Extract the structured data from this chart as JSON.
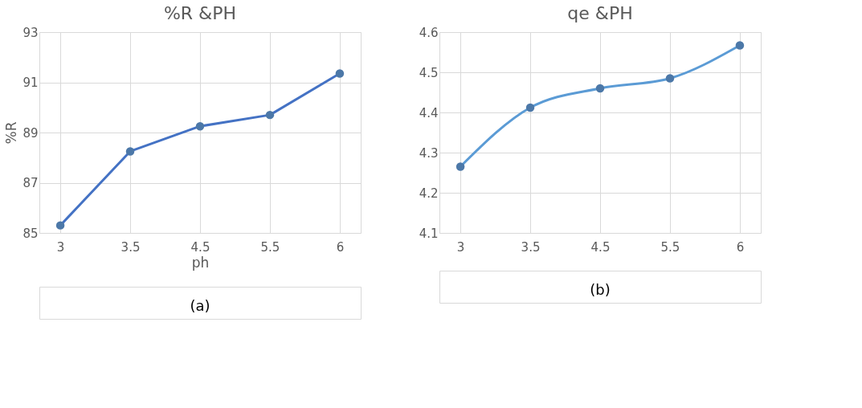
{
  "chart_data": [
    {
      "type": "line",
      "title": "%R &PH",
      "xlabel": "ph",
      "ylabel": "%R",
      "categories": [
        "3",
        "3.5",
        "4.5",
        "5.5",
        "6"
      ],
      "series": [
        {
          "color": "#4472c4",
          "values": [
            85.3,
            88.25,
            89.25,
            89.7,
            91.35
          ]
        }
      ],
      "ylim": [
        85,
        93
      ],
      "yticks": [
        85,
        87,
        89,
        91,
        93
      ],
      "grid": true,
      "marker": "circle",
      "annotations": [
        "(a)"
      ]
    },
    {
      "type": "line",
      "title": "qe &PH",
      "categories": [
        "3",
        "3.5",
        "4.5",
        "5.5",
        "6"
      ],
      "series": [
        {
          "color": "#5b9bd5",
          "values": [
            4.265,
            4.412,
            4.46,
            4.485,
            4.567
          ]
        }
      ],
      "ylim": [
        4.1,
        4.6
      ],
      "yticks": [
        4.1,
        4.2,
        4.3,
        4.4,
        4.5,
        4.6
      ],
      "grid": true,
      "marker": "circle",
      "annotations": [
        "(b)"
      ]
    }
  ]
}
